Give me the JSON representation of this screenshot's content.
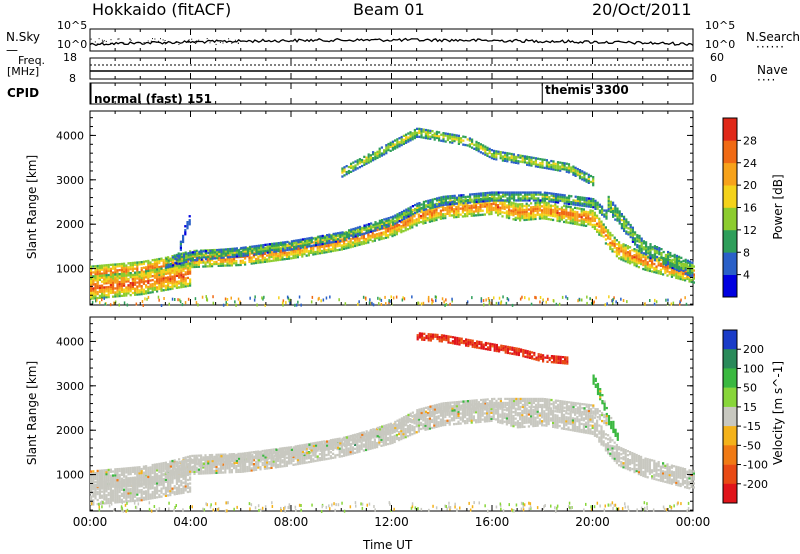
{
  "header": {
    "site": "Hokkaido (fitACF)",
    "beam": "Beam 01",
    "date": "20/Oct/2011"
  },
  "noise_panel": {
    "left_label": "N.Sky",
    "right_label": "N.Search",
    "left_ticks": [
      "10^5",
      "10^0"
    ],
    "right_ticks": [
      "10^5",
      "10^0"
    ]
  },
  "freq_panel": {
    "left_label": "Freq.",
    "left_unit": "[MHz]",
    "left_ticks": [
      "18",
      "8"
    ],
    "right_label": "Nave",
    "right_ticks": [
      "60",
      "0"
    ]
  },
  "cpid_panel": {
    "label": "CPID",
    "modes": [
      {
        "name": "normal (fast) 151",
        "start_hour": 0
      },
      {
        "name": "themis 3300",
        "start_hour": 18.0
      }
    ]
  },
  "time_axis": {
    "label": "Time UT",
    "ticks": [
      "00:00",
      "04:00",
      "08:00",
      "12:00",
      "16:00",
      "20:00",
      "00:00"
    ]
  },
  "chart_data": [
    {
      "type": "heatmap",
      "title": "Power",
      "ylabel": "Slant Range [km]",
      "y_ticks": [
        1000,
        2000,
        3000,
        4000
      ],
      "ylim": [
        180,
        4550
      ],
      "xlim_hours": [
        0,
        24
      ],
      "colorbar_label": "Power [dB]",
      "colorbar_ticks": [
        "4",
        "8",
        "12",
        "16",
        "20",
        "24",
        "28"
      ],
      "colorbar_colors": [
        "#0000e0",
        "#2a60c8",
        "#2e9e5a",
        "#8ccc2e",
        "#f4d21a",
        "#f7a21a",
        "#f06a14",
        "#e02818"
      ],
      "bands": [
        {
          "hour": [
            0,
            2,
            3,
            4,
            6,
            8,
            10,
            12,
            13,
            14,
            16,
            17,
            18,
            19,
            20,
            20.6,
            21,
            22,
            24
          ],
          "km": [
            900,
            1000,
            1100,
            1250,
            1300,
            1450,
            1650,
            1950,
            2200,
            2350,
            2450,
            2300,
            2350,
            2250,
            2150,
            1700,
            1450,
            1200,
            900
          ],
          "width_km": 380,
          "level_db": 26
        },
        {
          "hour": [
            0,
            1,
            2,
            3,
            4
          ],
          "km": [
            600,
            650,
            700,
            800,
            900
          ],
          "width_km": 500,
          "level_db": 28
        },
        {
          "hour": [
            3,
            4,
            6,
            8,
            10,
            12,
            13,
            14,
            16,
            18,
            20,
            20.6
          ],
          "km": [
            1150,
            1300,
            1400,
            1550,
            1750,
            2100,
            2400,
            2550,
            2650,
            2650,
            2500,
            2200
          ],
          "width_km": 180,
          "level_db": 14
        },
        {
          "hour": [
            10,
            11,
            12,
            13,
            14,
            15,
            16,
            18,
            19,
            20
          ],
          "km": [
            3200,
            3500,
            3800,
            4100,
            4000,
            3900,
            3600,
            3400,
            3300,
            3000
          ],
          "width_km": 200,
          "level_db": 17
        },
        {
          "hour": [
            20.6,
            21,
            22,
            24
          ],
          "km": [
            2500,
            2200,
            1500,
            1000
          ],
          "width_km": 350,
          "level_db": 14
        },
        {
          "hour": [
            3.4,
            3.6,
            3.8,
            4.0
          ],
          "km": [
            1200,
            1600,
            2000,
            2200
          ],
          "width_km": 200,
          "level_db": 8
        }
      ]
    },
    {
      "type": "heatmap",
      "title": "Velocity",
      "ylabel": "Slant Range [km]",
      "y_ticks": [
        1000,
        2000,
        3000,
        4000
      ],
      "ylim": [
        180,
        4550
      ],
      "xlim_hours": [
        0,
        24
      ],
      "colorbar_label": "Velocity [m s^-1]",
      "colorbar_ticks": [
        "200",
        "100",
        "50",
        "15",
        "-15",
        "-50",
        "-100",
        "-200"
      ],
      "colorbar_colors": [
        "#1a3cc8",
        "#2a8a5a",
        "#3ab840",
        "#88d63a",
        "#c8c8c0",
        "#f4b21a",
        "#f07a14",
        "#e84a14",
        "#e0141a"
      ],
      "bands": [
        {
          "hour": [
            0,
            2,
            3,
            4,
            6,
            8,
            10,
            12,
            13,
            14,
            16,
            17,
            18,
            19,
            20,
            20.6,
            21,
            22,
            24
          ],
          "km": [
            900,
            1000,
            1100,
            1250,
            1300,
            1450,
            1650,
            1950,
            2200,
            2350,
            2450,
            2300,
            2350,
            2250,
            2150,
            1700,
            1450,
            1200,
            900
          ],
          "width_km": 420,
          "velocity": 0
        },
        {
          "hour": [
            0,
            1,
            2,
            3,
            4
          ],
          "km": [
            600,
            650,
            700,
            800,
            900
          ],
          "width_km": 500,
          "velocity": 0
        },
        {
          "hour": [
            3,
            4,
            6,
            8,
            10,
            12,
            13,
            14,
            16,
            18,
            20,
            20.6
          ],
          "km": [
            1150,
            1300,
            1400,
            1550,
            1750,
            2100,
            2400,
            2550,
            2650,
            2650,
            2500,
            2200
          ],
          "width_km": 200,
          "velocity": 0
        },
        {
          "hour": [
            13,
            14,
            15,
            16,
            17,
            18,
            19
          ],
          "km": [
            4150,
            4100,
            4000,
            3900,
            3800,
            3650,
            3600
          ],
          "width_km": 150,
          "velocity": -150
        },
        {
          "hour": [
            20.0,
            20.3,
            20.6,
            21.0
          ],
          "km": [
            3200,
            2800,
            2300,
            1900
          ],
          "width_km": 250,
          "velocity": 40
        }
      ]
    }
  ]
}
